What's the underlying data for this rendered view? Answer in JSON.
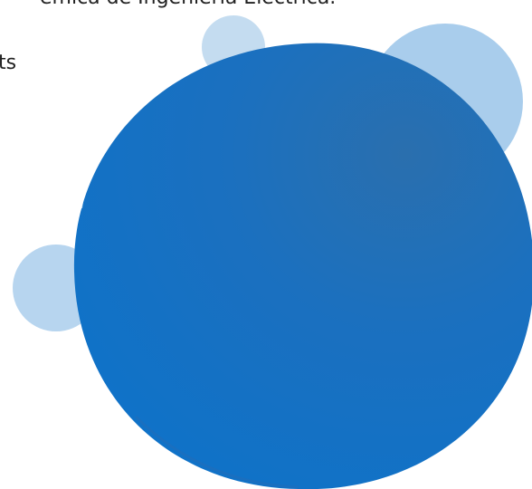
{
  "header": {
    "title": "émica de Ingeniería Eléctrica."
  },
  "side": {
    "label": "ts"
  }
}
